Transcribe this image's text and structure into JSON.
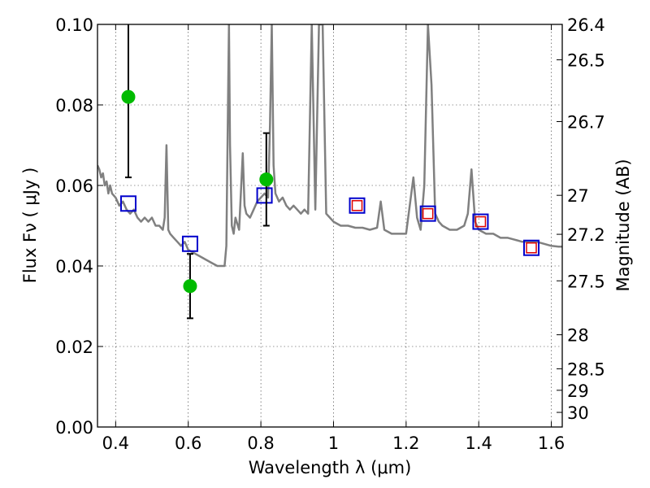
{
  "chart_data": {
    "type": "scatter",
    "xlabel": "Wavelength  λ (μm)",
    "ylabel": "Flux  Fν  ( μJy )",
    "y2label": "Magnitude (AB)",
    "xlim": [
      0.35,
      1.63
    ],
    "ylim": [
      0.0,
      0.1
    ],
    "grid": true,
    "x_ticks": [
      "0.4",
      "0.6",
      "0.8",
      "1",
      "1.2",
      "1.4",
      "1.6"
    ],
    "y_ticks": [
      "0.00",
      "0.02",
      "0.04",
      "0.06",
      "0.08",
      "0.10"
    ],
    "mag_ticks": [
      "26.4",
      "26.5",
      "26.7",
      "27",
      "27.2",
      "27.5",
      "28",
      "28.5",
      "29",
      "30"
    ],
    "colors": {
      "spectrum": "#808080",
      "observed": "#00bb00",
      "model_outer": "#0000cc",
      "model_inner": "#dd0000",
      "errorbar": "#000000"
    },
    "series": [
      {
        "kind": "model_spectrum",
        "x": [
          0.35,
          0.355,
          0.36,
          0.365,
          0.37,
          0.375,
          0.38,
          0.385,
          0.39,
          0.4,
          0.41,
          0.42,
          0.43,
          0.44,
          0.45,
          0.46,
          0.47,
          0.48,
          0.49,
          0.5,
          0.51,
          0.52,
          0.53,
          0.535,
          0.54,
          0.545,
          0.55,
          0.56,
          0.57,
          0.58,
          0.59,
          0.6,
          0.62,
          0.64,
          0.66,
          0.68,
          0.7,
          0.705,
          0.71,
          0.712,
          0.715,
          0.72,
          0.725,
          0.73,
          0.74,
          0.75,
          0.755,
          0.76,
          0.77,
          0.78,
          0.79,
          0.8,
          0.81,
          0.82,
          0.825,
          0.83,
          0.835,
          0.84,
          0.85,
          0.86,
          0.87,
          0.88,
          0.89,
          0.9,
          0.91,
          0.92,
          0.93,
          0.94,
          0.95,
          0.96,
          0.97,
          0.98,
          0.99,
          1.0,
          1.02,
          1.04,
          1.06,
          1.08,
          1.1,
          1.12,
          1.13,
          1.14,
          1.16,
          1.18,
          1.2,
          1.21,
          1.22,
          1.23,
          1.24,
          1.25,
          1.26,
          1.27,
          1.28,
          1.29,
          1.3,
          1.32,
          1.34,
          1.36,
          1.37,
          1.38,
          1.39,
          1.4,
          1.42,
          1.44,
          1.46,
          1.48,
          1.5,
          1.52,
          1.54,
          1.56,
          1.58,
          1.6,
          1.62,
          1.63
        ],
        "y": [
          0.065,
          0.064,
          0.062,
          0.063,
          0.06,
          0.061,
          0.058,
          0.06,
          0.058,
          0.057,
          0.055,
          0.056,
          0.054,
          0.053,
          0.054,
          0.052,
          0.051,
          0.052,
          0.051,
          0.052,
          0.05,
          0.05,
          0.049,
          0.052,
          0.07,
          0.049,
          0.048,
          0.047,
          0.046,
          0.045,
          0.046,
          0.044,
          0.043,
          0.042,
          0.041,
          0.04,
          0.04,
          0.045,
          0.085,
          0.1,
          0.07,
          0.05,
          0.048,
          0.052,
          0.049,
          0.068,
          0.055,
          0.053,
          0.052,
          0.054,
          0.056,
          0.057,
          0.058,
          0.057,
          0.075,
          0.1,
          0.065,
          0.058,
          0.056,
          0.057,
          0.055,
          0.054,
          0.055,
          0.054,
          0.053,
          0.054,
          0.053,
          0.1,
          0.054,
          0.1,
          0.1,
          0.053,
          0.052,
          0.051,
          0.05,
          0.05,
          0.0495,
          0.0495,
          0.049,
          0.0495,
          0.056,
          0.049,
          0.048,
          0.048,
          0.048,
          0.055,
          0.062,
          0.052,
          0.049,
          0.06,
          0.1,
          0.085,
          0.053,
          0.051,
          0.05,
          0.049,
          0.049,
          0.05,
          0.053,
          0.064,
          0.051,
          0.049,
          0.048,
          0.048,
          0.047,
          0.047,
          0.0465,
          0.046,
          0.046,
          0.046,
          0.0455,
          0.045,
          0.0448,
          0.0448
        ]
      },
      {
        "name": "",
        "kind": "observed",
        "points": [
          {
            "x": 0.435,
            "y": 0.082,
            "err_lo": 0.062,
            "err_hi": 0.101
          },
          {
            "x": 0.605,
            "y": 0.035,
            "err_lo": 0.027,
            "err_hi": 0.043
          },
          {
            "x": 0.815,
            "y": 0.0615,
            "err_lo": 0.05,
            "err_hi": 0.073
          }
        ]
      },
      {
        "kind": "model_photometry",
        "points": [
          {
            "x": 0.435,
            "y": 0.0555,
            "inner": false
          },
          {
            "x": 0.605,
            "y": 0.0455,
            "inner": false
          },
          {
            "x": 0.81,
            "y": 0.0575,
            "inner": false
          },
          {
            "x": 1.065,
            "y": 0.055,
            "inner": true
          },
          {
            "x": 1.26,
            "y": 0.053,
            "inner": true
          },
          {
            "x": 1.405,
            "y": 0.051,
            "inner": true
          },
          {
            "x": 1.545,
            "y": 0.0445,
            "inner": true
          }
        ]
      }
    ]
  }
}
